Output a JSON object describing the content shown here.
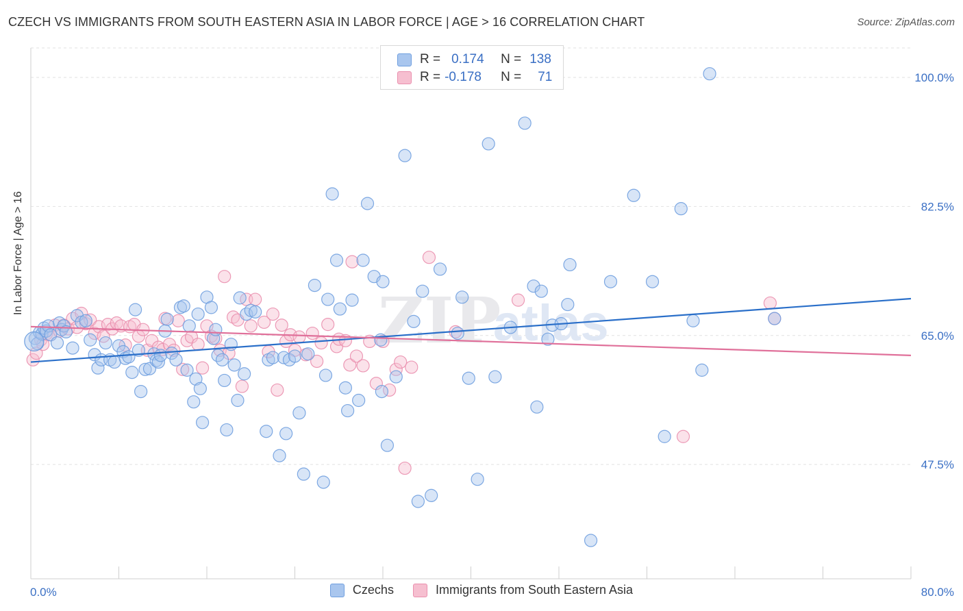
{
  "header": {
    "title": "CZECH VS IMMIGRANTS FROM SOUTH EASTERN ASIA IN LABOR FORCE | AGE > 16 CORRELATION CHART",
    "source": "Source: ZipAtlas.com"
  },
  "colors": {
    "czechs_fill": "#a9c6ee",
    "czechs_stroke": "#6f9fdf",
    "czechs_line": "#2a6fc9",
    "sea_fill": "#f6bfd0",
    "sea_stroke": "#ea8fae",
    "sea_line": "#e0709a",
    "axis_text": "#3a6fc4",
    "grid": "#e2e2e2"
  },
  "stats": {
    "row1": {
      "r_label": "R =",
      "r_value": "0.174",
      "n_label": "N =",
      "n_value": "138"
    },
    "row2": {
      "r_label": "R =",
      "r_value": "-0.178",
      "n_label": "N =",
      "n_value": "71"
    }
  },
  "watermark": {
    "part1": "ZIP",
    "part2": "atlas"
  },
  "chart_data": {
    "type": "scatter",
    "title": "CZECH VS IMMIGRANTS FROM SOUTH EASTERN ASIA IN LABOR FORCE | AGE > 16 CORRELATION CHART",
    "xlabel": "",
    "ylabel": "In Labor Force | Age > 16",
    "xlim": [
      0,
      80
    ],
    "ylim": [
      32,
      104
    ],
    "x_tick_labels": [
      "0.0%",
      "80.0%"
    ],
    "y_ticks": [
      47.5,
      65.0,
      82.5,
      100.0
    ],
    "y_tick_labels": [
      "47.5%",
      "65.0%",
      "82.5%",
      "100.0%"
    ],
    "grid": true,
    "legend_position": "bottom",
    "series": [
      {
        "name": "Czechs",
        "trend": {
          "x": [
            0,
            80
          ],
          "y": [
            61.4,
            70.0
          ]
        },
        "points": [
          [
            0.4,
            64.6
          ],
          [
            0.6,
            63.9
          ],
          [
            0.8,
            65.4
          ],
          [
            1.0,
            65.2
          ],
          [
            1.2,
            66.0
          ],
          [
            1.4,
            65.6
          ],
          [
            1.6,
            66.3
          ],
          [
            1.8,
            65.1
          ],
          [
            2.4,
            64.0
          ],
          [
            2.6,
            66.7
          ],
          [
            2.8,
            65.8
          ],
          [
            3.0,
            66.3
          ],
          [
            3.2,
            65.5
          ],
          [
            3.8,
            63.3
          ],
          [
            4.2,
            67.7
          ],
          [
            4.6,
            66.8
          ],
          [
            5.0,
            67.0
          ],
          [
            5.4,
            64.4
          ],
          [
            5.8,
            62.4
          ],
          [
            6.1,
            60.6
          ],
          [
            6.4,
            61.7
          ],
          [
            6.8,
            64.0
          ],
          [
            7.2,
            61.7
          ],
          [
            7.6,
            61.4
          ],
          [
            8.0,
            63.6
          ],
          [
            8.4,
            62.8
          ],
          [
            8.6,
            61.9
          ],
          [
            8.9,
            62.1
          ],
          [
            9.2,
            60.0
          ],
          [
            9.5,
            68.5
          ],
          [
            9.8,
            63.0
          ],
          [
            10.0,
            57.4
          ],
          [
            10.4,
            60.4
          ],
          [
            10.8,
            60.5
          ],
          [
            11.2,
            62.5
          ],
          [
            11.4,
            61.6
          ],
          [
            11.6,
            61.4
          ],
          [
            11.8,
            62.3
          ],
          [
            12.2,
            65.6
          ],
          [
            12.4,
            67.2
          ],
          [
            12.8,
            62.6
          ],
          [
            13.2,
            61.7
          ],
          [
            13.6,
            68.8
          ],
          [
            13.9,
            69.0
          ],
          [
            14.2,
            60.3
          ],
          [
            14.4,
            66.3
          ],
          [
            14.8,
            56.0
          ],
          [
            15.0,
            59.1
          ],
          [
            15.2,
            67.9
          ],
          [
            15.4,
            57.8
          ],
          [
            15.6,
            53.2
          ],
          [
            16.0,
            70.2
          ],
          [
            16.4,
            68.8
          ],
          [
            16.6,
            64.6
          ],
          [
            16.8,
            65.8
          ],
          [
            17.0,
            62.3
          ],
          [
            17.4,
            61.7
          ],
          [
            17.6,
            58.9
          ],
          [
            17.8,
            52.2
          ],
          [
            18.2,
            63.8
          ],
          [
            18.5,
            61.0
          ],
          [
            18.8,
            56.2
          ],
          [
            19.0,
            70.1
          ],
          [
            19.4,
            59.8
          ],
          [
            19.6,
            67.9
          ],
          [
            20.0,
            68.4
          ],
          [
            20.4,
            68.2
          ],
          [
            21.4,
            52.0
          ],
          [
            21.6,
            61.7
          ],
          [
            22.0,
            62.0
          ],
          [
            22.6,
            48.7
          ],
          [
            23.0,
            62.0
          ],
          [
            23.2,
            51.7
          ],
          [
            23.5,
            61.7
          ],
          [
            24.0,
            62.2
          ],
          [
            24.4,
            54.5
          ],
          [
            24.8,
            46.2
          ],
          [
            25.2,
            62.5
          ],
          [
            25.8,
            71.8
          ],
          [
            26.6,
            45.1
          ],
          [
            26.8,
            59.6
          ],
          [
            27.0,
            69.9
          ],
          [
            27.4,
            84.2
          ],
          [
            27.8,
            75.2
          ],
          [
            28.1,
            68.6
          ],
          [
            28.6,
            57.9
          ],
          [
            28.8,
            54.8
          ],
          [
            29.2,
            69.8
          ],
          [
            29.8,
            56.2
          ],
          [
            30.2,
            75.2
          ],
          [
            30.6,
            82.9
          ],
          [
            31.2,
            73.0
          ],
          [
            31.8,
            64.4
          ],
          [
            31.9,
            57.4
          ],
          [
            32.0,
            72.3
          ],
          [
            32.4,
            50.1
          ],
          [
            33.2,
            59.4
          ],
          [
            34.0,
            89.4
          ],
          [
            34.8,
            66.9
          ],
          [
            35.2,
            42.5
          ],
          [
            35.6,
            71.0
          ],
          [
            36.4,
            43.3
          ],
          [
            37.2,
            74.0
          ],
          [
            38.8,
            65.3
          ],
          [
            39.2,
            70.2
          ],
          [
            39.8,
            59.2
          ],
          [
            40.6,
            45.5
          ],
          [
            41.6,
            91.0
          ],
          [
            42.2,
            59.4
          ],
          [
            43.6,
            66.1
          ],
          [
            44.9,
            93.8
          ],
          [
            45.7,
            71.7
          ],
          [
            46.0,
            55.3
          ],
          [
            46.4,
            71.0
          ],
          [
            47.0,
            64.5
          ],
          [
            47.4,
            66.4
          ],
          [
            48.2,
            66.6
          ],
          [
            48.8,
            69.2
          ],
          [
            49.0,
            74.6
          ],
          [
            50.9,
            37.2
          ],
          [
            52.7,
            72.3
          ],
          [
            54.8,
            84.0
          ],
          [
            56.5,
            72.3
          ],
          [
            57.6,
            51.3
          ],
          [
            59.1,
            82.2
          ],
          [
            60.2,
            67.0
          ],
          [
            61.0,
            60.3
          ],
          [
            61.7,
            100.5
          ],
          [
            67.6,
            67.3
          ]
        ]
      },
      {
        "name": "Immigrants from South Eastern Asia",
        "trend": {
          "x": [
            0,
            80
          ],
          "y": [
            66.2,
            62.3
          ]
        },
        "points": [
          [
            0.2,
            61.7
          ],
          [
            0.5,
            62.6
          ],
          [
            0.9,
            64.4
          ],
          [
            1.1,
            63.8
          ],
          [
            1.4,
            65.2
          ],
          [
            1.8,
            65.1
          ],
          [
            2.2,
            66.4
          ],
          [
            2.6,
            65.6
          ],
          [
            3.0,
            66.4
          ],
          [
            3.4,
            65.9
          ],
          [
            3.8,
            67.3
          ],
          [
            4.2,
            66.1
          ],
          [
            4.6,
            68.0
          ],
          [
            5.0,
            66.6
          ],
          [
            5.4,
            67.1
          ],
          [
            5.8,
            65.3
          ],
          [
            6.2,
            66.2
          ],
          [
            6.6,
            64.9
          ],
          [
            7.0,
            66.5
          ],
          [
            7.4,
            65.9
          ],
          [
            7.8,
            66.7
          ],
          [
            8.2,
            66.3
          ],
          [
            8.6,
            63.7
          ],
          [
            9.0,
            66.2
          ],
          [
            9.4,
            66.5
          ],
          [
            9.8,
            64.9
          ],
          [
            10.2,
            65.8
          ],
          [
            10.6,
            63.0
          ],
          [
            11.0,
            64.3
          ],
          [
            11.6,
            63.4
          ],
          [
            12.0,
            63.1
          ],
          [
            12.2,
            67.3
          ],
          [
            12.6,
            63.8
          ],
          [
            13.0,
            63.0
          ],
          [
            13.4,
            67.0
          ],
          [
            13.8,
            60.4
          ],
          [
            14.2,
            64.3
          ],
          [
            14.6,
            64.8
          ],
          [
            15.2,
            63.8
          ],
          [
            15.6,
            60.6
          ],
          [
            16.0,
            66.3
          ],
          [
            16.4,
            64.9
          ],
          [
            16.8,
            64.6
          ],
          [
            17.2,
            63.0
          ],
          [
            17.6,
            73.0
          ],
          [
            18.0,
            62.6
          ],
          [
            18.4,
            67.5
          ],
          [
            18.8,
            67.1
          ],
          [
            19.2,
            58.1
          ],
          [
            19.6,
            69.9
          ],
          [
            20.0,
            66.3
          ],
          [
            20.4,
            69.9
          ],
          [
            21.2,
            66.8
          ],
          [
            21.6,
            62.8
          ],
          [
            22.0,
            67.9
          ],
          [
            22.4,
            57.6
          ],
          [
            22.8,
            66.4
          ],
          [
            23.2,
            64.2
          ],
          [
            23.6,
            65.1
          ],
          [
            24.0,
            63.0
          ],
          [
            24.4,
            64.8
          ],
          [
            25.0,
            62.4
          ],
          [
            25.6,
            65.3
          ],
          [
            26.0,
            61.5
          ],
          [
            26.4,
            64.0
          ],
          [
            27.0,
            66.5
          ],
          [
            27.8,
            63.5
          ],
          [
            28.0,
            64.5
          ],
          [
            28.6,
            64.3
          ],
          [
            29.0,
            61.0
          ],
          [
            29.2,
            75.0
          ],
          [
            29.6,
            62.2
          ],
          [
            30.2,
            60.9
          ],
          [
            30.8,
            64.2
          ],
          [
            31.4,
            58.5
          ],
          [
            32.0,
            64.2
          ],
          [
            32.6,
            57.6
          ],
          [
            33.2,
            60.4
          ],
          [
            33.6,
            61.4
          ],
          [
            34.0,
            47.0
          ],
          [
            34.6,
            60.7
          ],
          [
            36.2,
            75.6
          ],
          [
            38.6,
            65.5
          ],
          [
            44.3,
            69.8
          ],
          [
            59.3,
            51.3
          ],
          [
            67.2,
            69.4
          ],
          [
            67.6,
            67.3
          ]
        ]
      }
    ]
  },
  "legend": {
    "item1": "Czechs",
    "item2": "Immigrants from South Eastern Asia"
  }
}
